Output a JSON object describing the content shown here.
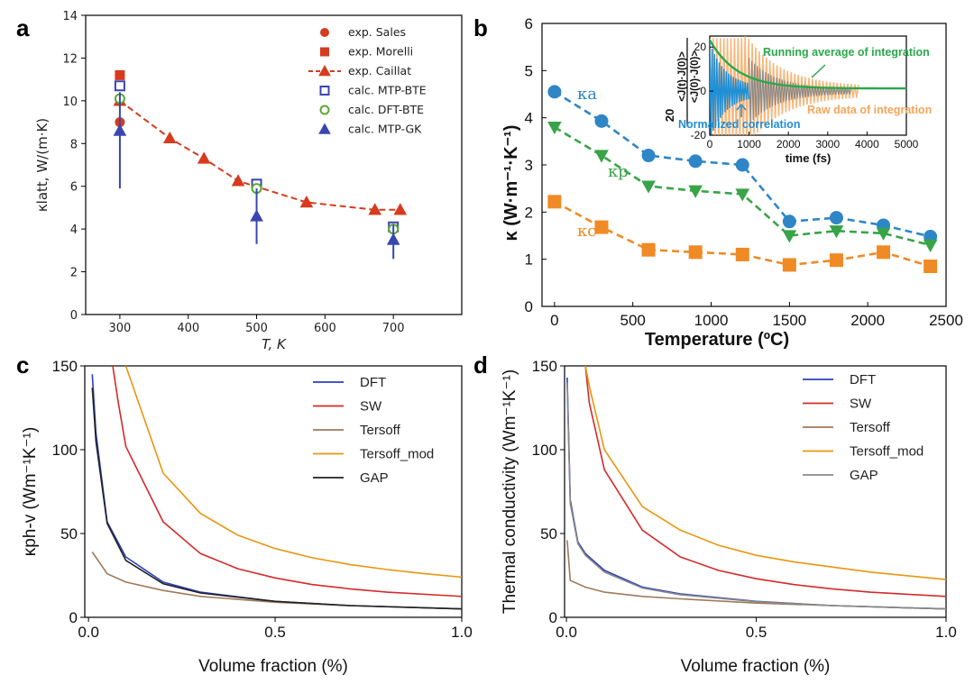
{
  "panels": {
    "a": "a",
    "b": "b",
    "c": "c",
    "d": "d"
  },
  "chart_data": [
    {
      "id": "a",
      "type": "scatter",
      "xlabel": "T, K",
      "ylabel": "κlatt, W/(m·K)",
      "xlim": [
        250,
        800
      ],
      "ylim": [
        0,
        14
      ],
      "xticks": [
        300,
        400,
        500,
        600,
        700
      ],
      "yticks": [
        0,
        2,
        4,
        6,
        8,
        10,
        12,
        14
      ],
      "series": [
        {
          "name": "exp. Sales",
          "marker": "circle-filled",
          "color": "#d63b1f",
          "points": [
            [
              300,
              9.0
            ]
          ]
        },
        {
          "name": "exp. Morelli",
          "marker": "square-filled",
          "color": "#d63b1f",
          "points": [
            [
              300,
              11.2
            ]
          ]
        },
        {
          "name": "exp. Caillat",
          "marker": "triangle-filled",
          "line": "dashed",
          "color": "#d63b1f",
          "points": [
            [
              300,
              10.0
            ],
            [
              373,
              8.25
            ],
            [
              423,
              7.3
            ],
            [
              473,
              6.25
            ],
            [
              573,
              5.25
            ],
            [
              673,
              4.9
            ],
            [
              710,
              4.9
            ]
          ]
        },
        {
          "name": "calc. MTP-BTE",
          "marker": "square-open",
          "color": "#3a46b0",
          "points": [
            [
              300,
              10.7
            ],
            [
              500,
              6.1
            ],
            [
              700,
              4.1
            ]
          ]
        },
        {
          "name": "calc. DFT-BTE",
          "marker": "circle-open",
          "color": "#5aa832",
          "points": [
            [
              300,
              10.1
            ],
            [
              500,
              5.9
            ],
            [
              700,
              4.0
            ]
          ]
        },
        {
          "name": "calc. MTP-GK",
          "marker": "triangle-filled",
          "errorbar": true,
          "color": "#3a46b0",
          "points": [
            [
              300,
              8.6,
              5.9,
              10.4
            ],
            [
              500,
              4.6,
              3.3,
              5.9
            ],
            [
              700,
              3.5,
              2.6,
              4.2
            ]
          ]
        }
      ]
    },
    {
      "id": "b",
      "type": "line",
      "xlabel": "Temperature (ºC)",
      "ylabel": "κ (W·m⁻¹·K⁻¹)",
      "xlim": [
        -80,
        2500
      ],
      "ylim": [
        0,
        6
      ],
      "xticks": [
        0,
        500,
        1000,
        1500,
        2000,
        2500
      ],
      "yticks": [
        0,
        1,
        2,
        3,
        4,
        5,
        6
      ],
      "x": [
        0,
        300,
        600,
        900,
        1200,
        1500,
        1800,
        2100,
        2400
      ],
      "series": [
        {
          "name": "κa",
          "color": "#2f86c6",
          "marker": "circle",
          "values": [
            4.55,
            3.93,
            3.2,
            3.08,
            3.0,
            1.8,
            1.88,
            1.72,
            1.48
          ]
        },
        {
          "name": "κp",
          "color": "#37a447",
          "marker": "triangle-down",
          "values": [
            3.8,
            3.2,
            2.55,
            2.45,
            2.38,
            1.5,
            1.6,
            1.55,
            1.3
          ]
        },
        {
          "name": "κc",
          "color": "#f08a24",
          "marker": "square",
          "values": [
            2.22,
            1.68,
            1.2,
            1.15,
            1.1,
            0.88,
            0.98,
            1.15,
            0.85
          ]
        }
      ],
      "inset": {
        "xlabel": "time (fs)",
        "ylabel_top": "<J(t)·J(0)>",
        "ylabel_bottom": "<J(0)·J(0)>",
        "ylabel_scale": "20",
        "xlim": [
          0,
          5000
        ],
        "ylim": [
          -20,
          25
        ],
        "xticks": [
          0,
          1000,
          2000,
          3000,
          4000,
          5000
        ],
        "yticks": [
          -20,
          0,
          20
        ],
        "labels": {
          "running": "Running average of integration",
          "raw": "Raw data of integration",
          "normalized": "Normalized correlation"
        },
        "colors": {
          "running": "#2aa84a",
          "raw": "#f5a55a",
          "normalized": "#1f8fd6",
          "gray": "#8a8a8a"
        }
      }
    },
    {
      "id": "c",
      "type": "line",
      "xlabel": "Volume fraction (%)",
      "ylabel": "κph-v (Wm⁻¹K⁻¹)",
      "xlim": [
        -0.01,
        1.0
      ],
      "ylim": [
        0,
        150
      ],
      "xticks": [
        0.0,
        0.5,
        1.0
      ],
      "yticks": [
        0,
        50,
        100,
        150
      ],
      "series": [
        {
          "name": "DFT",
          "color": "#2b3fbf",
          "points": [
            [
              0.01,
              145
            ],
            [
              0.02,
              110
            ],
            [
              0.05,
              57
            ],
            [
              0.1,
              36
            ],
            [
              0.2,
              21
            ],
            [
              0.3,
              15
            ],
            [
              0.5,
              9.5
            ],
            [
              0.7,
              7
            ],
            [
              1.0,
              5
            ]
          ]
        },
        {
          "name": "SW",
          "color": "#d42a2a",
          "points": [
            [
              0.065,
              150
            ],
            [
              0.08,
              128
            ],
            [
              0.1,
              102
            ],
            [
              0.2,
              57
            ],
            [
              0.3,
              38
            ],
            [
              0.4,
              29
            ],
            [
              0.5,
              23.5
            ],
            [
              0.6,
              19.5
            ],
            [
              0.7,
              17
            ],
            [
              0.8,
              15
            ],
            [
              1.0,
              12.5
            ]
          ]
        },
        {
          "name": "Tersoff",
          "color": "#a07a5a",
          "points": [
            [
              0.01,
              39
            ],
            [
              0.05,
              26
            ],
            [
              0.1,
              21
            ],
            [
              0.2,
              16
            ],
            [
              0.3,
              12.5
            ],
            [
              0.5,
              9
            ],
            [
              0.7,
              7
            ],
            [
              1.0,
              5
            ]
          ]
        },
        {
          "name": "Tersoff_mod",
          "color": "#e8960f",
          "points": [
            [
              0.1,
              150
            ],
            [
              0.2,
              86
            ],
            [
              0.3,
              62
            ],
            [
              0.4,
              49
            ],
            [
              0.5,
              41
            ],
            [
              0.6,
              35.5
            ],
            [
              0.7,
              31.5
            ],
            [
              0.8,
              28.5
            ],
            [
              0.9,
              26
            ],
            [
              1.0,
              24
            ]
          ]
        },
        {
          "name": "GAP",
          "color": "#222222",
          "points": [
            [
              0.01,
              137
            ],
            [
              0.02,
              105
            ],
            [
              0.05,
              56
            ],
            [
              0.1,
              34
            ],
            [
              0.2,
              20
            ],
            [
              0.3,
              14.5
            ],
            [
              0.5,
              9.5
            ],
            [
              0.7,
              7
            ],
            [
              1.0,
              5
            ]
          ]
        }
      ]
    },
    {
      "id": "d",
      "type": "line",
      "xlabel": "Volume fraction (%)",
      "ylabel": "Thermal conductivity (Wm⁻¹K⁻¹)",
      "xlim": [
        -0.005,
        1.0
      ],
      "ylim": [
        0,
        150
      ],
      "xticks": [
        0.0,
        0.5,
        1.0
      ],
      "yticks": [
        0,
        50,
        100,
        150
      ],
      "series": [
        {
          "name": "DFT",
          "color": "#2b3fbf",
          "points": [
            [
              0.002,
              143
            ],
            [
              0.01,
              70
            ],
            [
              0.03,
              45
            ],
            [
              0.05,
              38
            ],
            [
              0.1,
              28
            ],
            [
              0.2,
              18
            ],
            [
              0.3,
              14
            ],
            [
              0.5,
              9.5
            ],
            [
              0.7,
              7
            ],
            [
              1.0,
              5
            ]
          ]
        },
        {
          "name": "SW",
          "color": "#d42a2a",
          "points": [
            [
              0.05,
              150
            ],
            [
              0.06,
              128
            ],
            [
              0.1,
              88
            ],
            [
              0.2,
              52
            ],
            [
              0.3,
              36
            ],
            [
              0.4,
              28
            ],
            [
              0.5,
              23
            ],
            [
              0.6,
              19.5
            ],
            [
              0.7,
              17
            ],
            [
              0.8,
              15
            ],
            [
              1.0,
              12.5
            ]
          ]
        },
        {
          "name": "Tersoff",
          "color": "#a07a5a",
          "points": [
            [
              0.002,
              46
            ],
            [
              0.01,
              22
            ],
            [
              0.05,
              18
            ],
            [
              0.1,
              15
            ],
            [
              0.2,
              12.5
            ],
            [
              0.3,
              11
            ],
            [
              0.5,
              8.5
            ],
            [
              0.7,
              7
            ],
            [
              1.0,
              5
            ]
          ]
        },
        {
          "name": "Tersoff_mod",
          "color": "#e8960f",
          "points": [
            [
              0.05,
              150
            ],
            [
              0.06,
              138
            ],
            [
              0.1,
              100
            ],
            [
              0.2,
              66
            ],
            [
              0.3,
              52
            ],
            [
              0.4,
              43
            ],
            [
              0.5,
              37
            ],
            [
              0.6,
              33
            ],
            [
              0.7,
              30
            ],
            [
              0.8,
              27
            ],
            [
              1.0,
              22.5
            ]
          ]
        },
        {
          "name": "GAP",
          "color": "#888888",
          "points": [
            [
              0.002,
              140
            ],
            [
              0.01,
              68
            ],
            [
              0.03,
              44
            ],
            [
              0.05,
              37
            ],
            [
              0.1,
              27
            ],
            [
              0.2,
              17.5
            ],
            [
              0.3,
              13.5
            ],
            [
              0.5,
              9.3
            ],
            [
              0.7,
              7
            ],
            [
              1.0,
              5
            ]
          ]
        }
      ]
    }
  ]
}
